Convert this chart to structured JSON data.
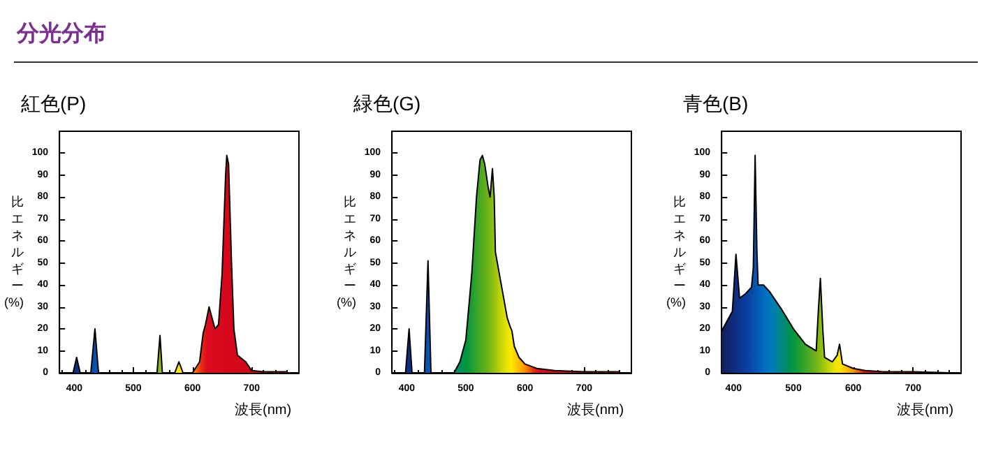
{
  "chart_data": [
    {
      "type": "area",
      "title": "紅色(P)",
      "annotations": [
        "分光分布"
      ],
      "xlabel": "波長(nm)",
      "ylabel": "比エネルギー(%)",
      "xlim": [
        375,
        780
      ],
      "xticks": [
        400,
        500,
        600,
        700
      ],
      "ylim": [
        0,
        110
      ],
      "yticks": [
        0,
        10,
        20,
        30,
        40,
        50,
        60,
        70,
        80,
        90,
        100
      ],
      "series": [
        {
          "color": "#000000",
          "x": [
            375,
            398,
            404,
            410,
            428,
            435,
            441,
            540,
            545,
            549,
            570,
            577,
            584,
            600,
            612,
            618,
            622,
            628,
            632,
            638,
            644,
            650,
            656,
            658,
            661,
            666,
            670,
            676,
            690,
            700,
            720,
            760
          ],
          "values": [
            0,
            0,
            7,
            0,
            0,
            20,
            0,
            0,
            17,
            0,
            0,
            5,
            0,
            0,
            5,
            18,
            22,
            30,
            26,
            20,
            22,
            45,
            90,
            99,
            95,
            50,
            20,
            8,
            5,
            1,
            0.5,
            0.5
          ]
        }
      ]
    },
    {
      "type": "area",
      "title": "緑色(G)",
      "xlabel": "波長(nm)",
      "ylabel": "比エネルギー(%)",
      "xlim": [
        375,
        780
      ],
      "xticks": [
        400,
        500,
        600,
        700
      ],
      "ylim": [
        0,
        110
      ],
      "yticks": [
        0,
        10,
        20,
        30,
        40,
        50,
        60,
        70,
        80,
        90,
        100
      ],
      "series": [
        {
          "color": "#000000",
          "x": [
            375,
            398,
            404,
            409,
            430,
            436,
            441,
            480,
            490,
            500,
            510,
            518,
            524,
            528,
            532,
            538,
            541,
            545,
            548,
            550,
            560,
            570,
            575,
            578,
            582,
            590,
            600,
            620,
            650,
            700,
            760
          ],
          "values": [
            0,
            0,
            20,
            0,
            0,
            51,
            0,
            0,
            5,
            15,
            45,
            80,
            97,
            99,
            95,
            84,
            80,
            93,
            80,
            55,
            40,
            25,
            21,
            19,
            12,
            7,
            4,
            2,
            1,
            0.5,
            0.5
          ]
        }
      ]
    },
    {
      "type": "area",
      "title": "青色(B)",
      "xlabel": "波長(nm)",
      "ylabel": "比エネルギー(%)",
      "xlim": [
        380,
        780
      ],
      "xticks": [
        400,
        500,
        600,
        700
      ],
      "ylim": [
        0,
        110
      ],
      "yticks": [
        0,
        10,
        20,
        30,
        40,
        50,
        60,
        70,
        80,
        90,
        100
      ],
      "series": [
        {
          "color": "#000000",
          "x": [
            380,
            390,
            398,
            404,
            410,
            420,
            430,
            433,
            436,
            439,
            441,
            450,
            460,
            480,
            500,
            520,
            538,
            542,
            545,
            549,
            552,
            565,
            573,
            577,
            582,
            600,
            620,
            650,
            700,
            760
          ],
          "values": [
            19,
            24,
            28,
            54,
            34,
            36,
            39,
            48,
            99,
            55,
            40,
            40,
            37,
            29,
            20,
            13,
            10,
            30,
            43,
            20,
            7,
            5,
            8,
            13,
            4,
            2,
            1,
            0.5,
            0.5,
            0
          ]
        }
      ]
    }
  ]
}
